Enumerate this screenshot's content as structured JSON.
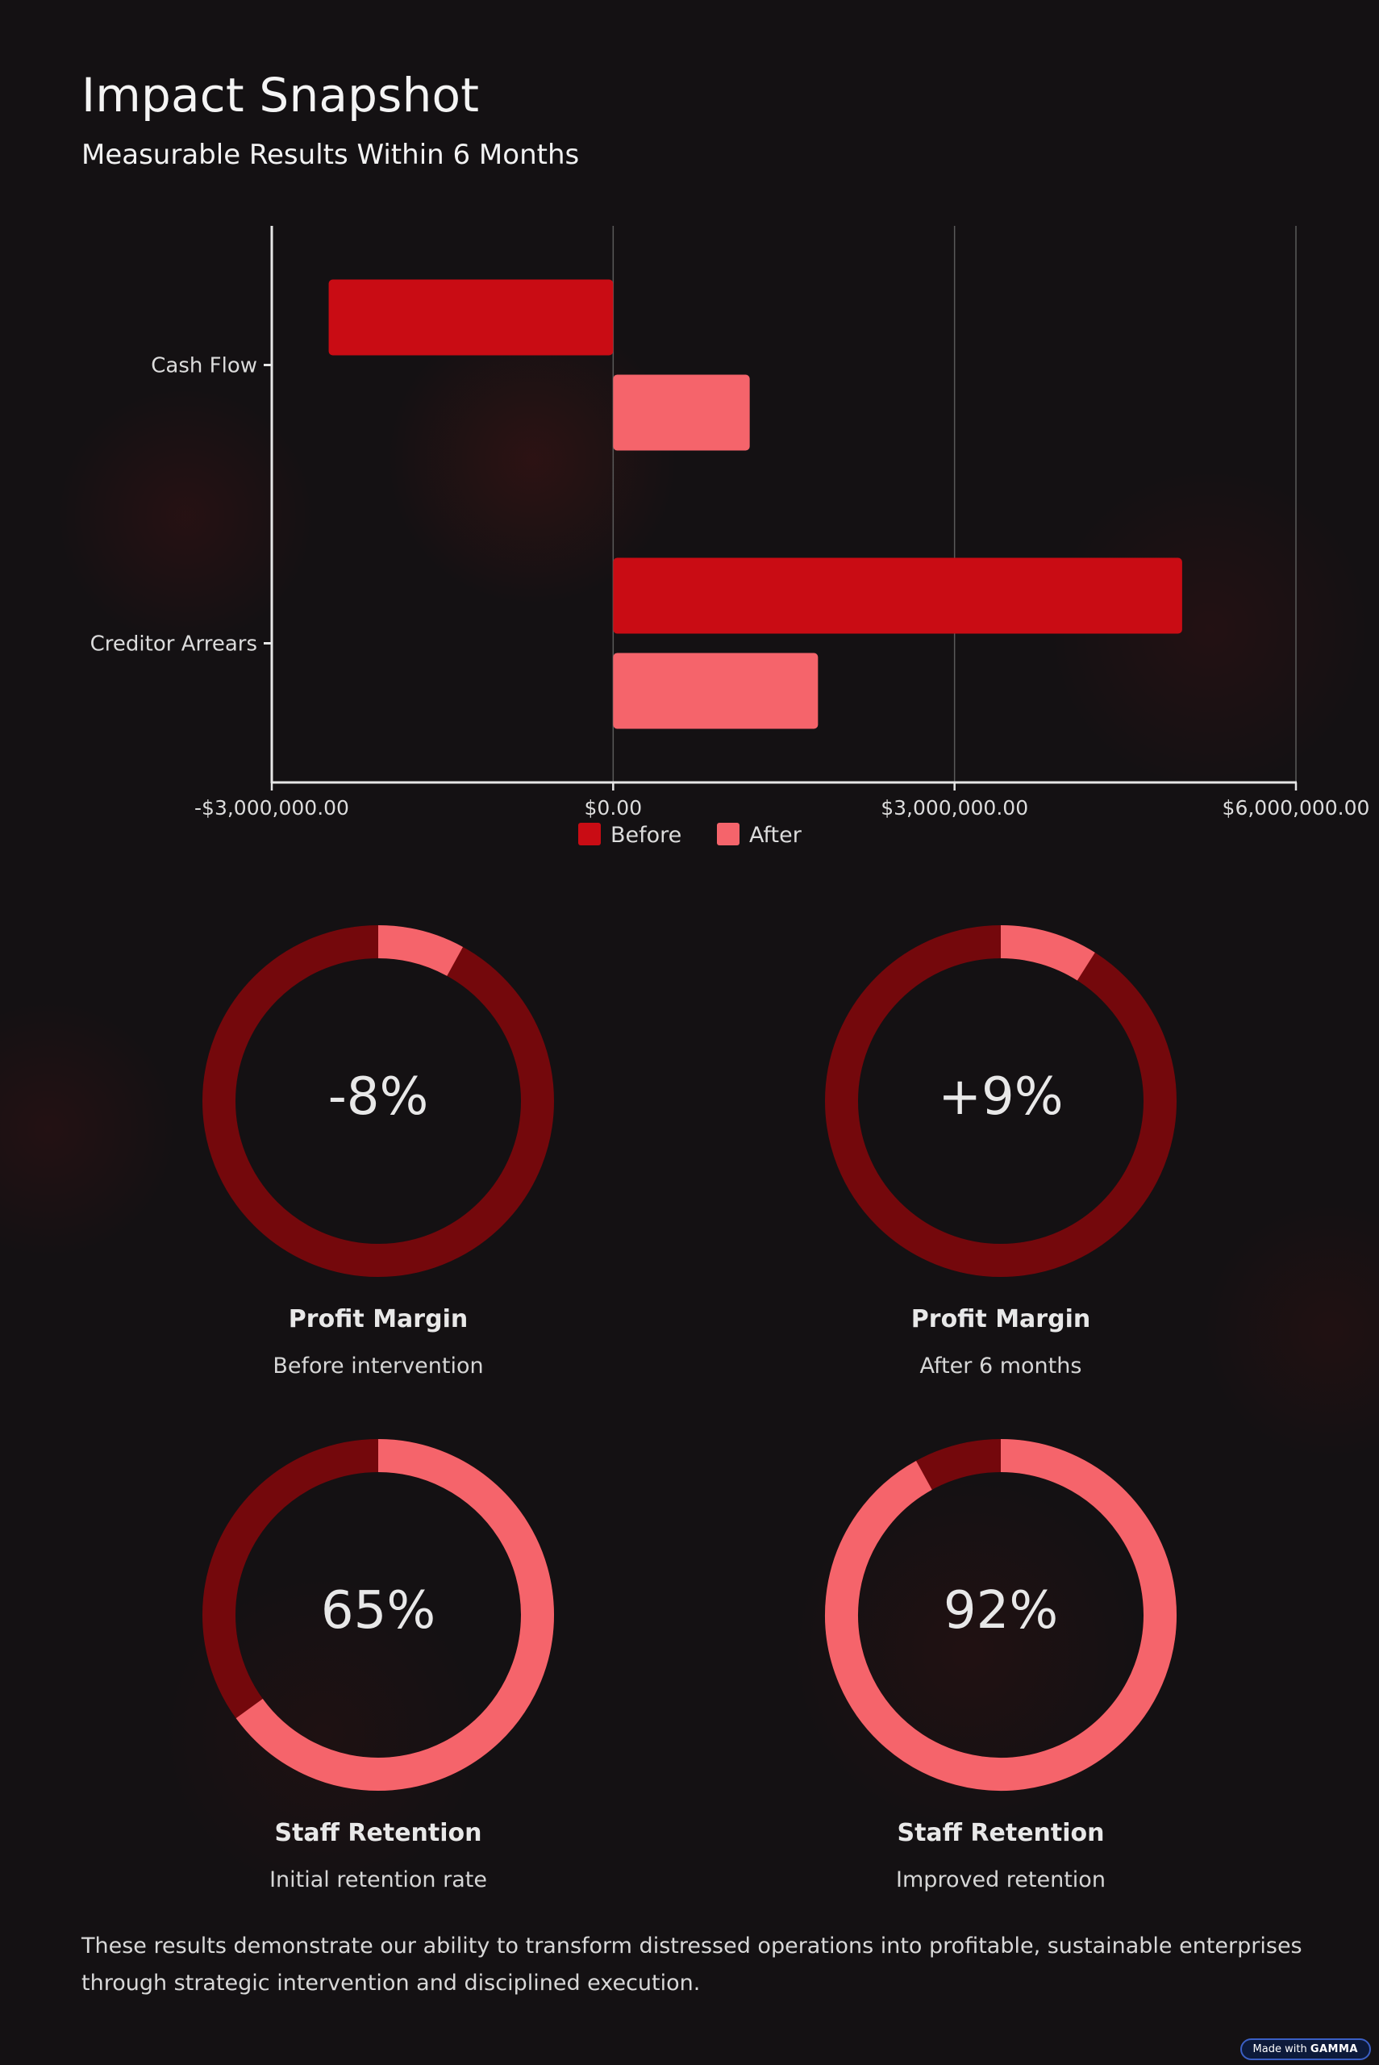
{
  "header": {
    "title": "Impact Snapshot",
    "subtitle": "Measurable Results Within 6 Months"
  },
  "colors": {
    "before": "#c90c14",
    "after": "#f5646b",
    "ring_track": "#74080c",
    "background": "#141113"
  },
  "chart_data": [
    {
      "type": "bar",
      "orientation": "horizontal",
      "categories": [
        "Cash Flow",
        "Creditor Arrears"
      ],
      "series": [
        {
          "name": "Before",
          "values": [
            -2500000,
            5000000
          ]
        },
        {
          "name": "After",
          "values": [
            1200000,
            1800000
          ]
        }
      ],
      "xlim": [
        -3000000,
        6000000
      ],
      "xticks": [
        -3000000,
        0,
        3000000,
        6000000
      ],
      "xtick_labels": [
        "-$3,000,000.00",
        "$0.00",
        "$3,000,000.00",
        "$6,000,000.00"
      ],
      "grid": "vertical",
      "legend": "bottom-center"
    },
    {
      "type": "pie",
      "variant": "donut",
      "value_label": "-8%",
      "filled_fraction": 0.08,
      "title": "Profit Margin",
      "subtitle": "Before intervention"
    },
    {
      "type": "pie",
      "variant": "donut",
      "value_label": "+9%",
      "filled_fraction": 0.09,
      "title": "Profit Margin",
      "subtitle": "After 6 months"
    },
    {
      "type": "pie",
      "variant": "donut",
      "value_label": "65%",
      "filled_fraction": 0.65,
      "title": "Staff Retention",
      "subtitle": "Initial retention rate"
    },
    {
      "type": "pie",
      "variant": "donut",
      "value_label": "92%",
      "filled_fraction": 0.92,
      "title": "Staff Retention",
      "subtitle": "Improved retention"
    }
  ],
  "footer": {
    "text": "These results demonstrate our ability to transform distressed operations into profitable, sustainable enterprises through strategic intervention and disciplined execution.",
    "badge_prefix": "Made with",
    "badge_brand": "GAMMA"
  }
}
